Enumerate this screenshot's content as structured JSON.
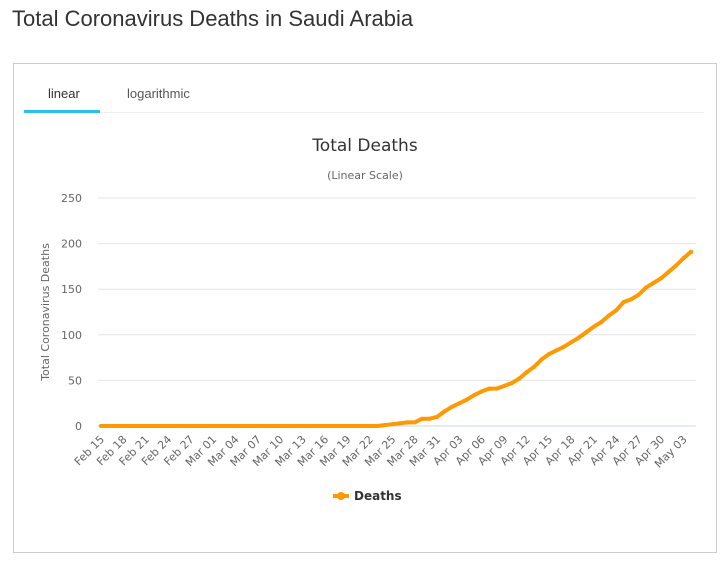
{
  "page_title": "Total Coronavirus Deaths in Saudi Arabia",
  "tabs": [
    {
      "label": "linear",
      "active": true
    },
    {
      "label": "logarithmic",
      "active": false
    }
  ],
  "colors": {
    "line": "#ff9900",
    "tab_underline": "#29c0f0"
  },
  "chart_data": {
    "type": "line",
    "title": "Total Deaths",
    "subtitle": "(Linear Scale)",
    "ylabel": "Total Coronavirus Deaths",
    "xlabel": "",
    "ylim": [
      0,
      250
    ],
    "yticks": [
      0,
      50,
      100,
      150,
      200,
      250
    ],
    "start_date": "Feb 15",
    "xtick_labels": [
      "Feb 15",
      "Feb 18",
      "Feb 21",
      "Feb 24",
      "Feb 27",
      "Mar 01",
      "Mar 04",
      "Mar 07",
      "Mar 10",
      "Mar 13",
      "Mar 16",
      "Mar 19",
      "Mar 22",
      "Mar 25",
      "Mar 28",
      "Mar 31",
      "Apr 03",
      "Apr 06",
      "Apr 09",
      "Apr 12",
      "Apr 15",
      "Apr 18",
      "Apr 21",
      "Apr 24",
      "Apr 27",
      "Apr 30",
      "May 03"
    ],
    "legend": "bottom-center",
    "series": [
      {
        "name": "Deaths",
        "values": [
          0,
          0,
          0,
          0,
          0,
          0,
          0,
          0,
          0,
          0,
          0,
          0,
          0,
          0,
          0,
          0,
          0,
          0,
          0,
          0,
          0,
          0,
          0,
          0,
          0,
          0,
          0,
          0,
          0,
          0,
          0,
          0,
          0,
          0,
          0,
          0,
          0,
          0,
          1,
          2,
          3,
          4,
          4,
          8,
          8,
          10,
          16,
          21,
          25,
          29,
          34,
          38,
          41,
          41,
          44,
          47,
          52,
          59,
          65,
          73,
          79,
          83,
          87,
          92,
          97,
          103,
          109,
          114,
          121,
          127,
          136,
          139,
          144,
          152,
          157,
          162,
          169,
          176,
          184,
          191
        ]
      }
    ]
  }
}
